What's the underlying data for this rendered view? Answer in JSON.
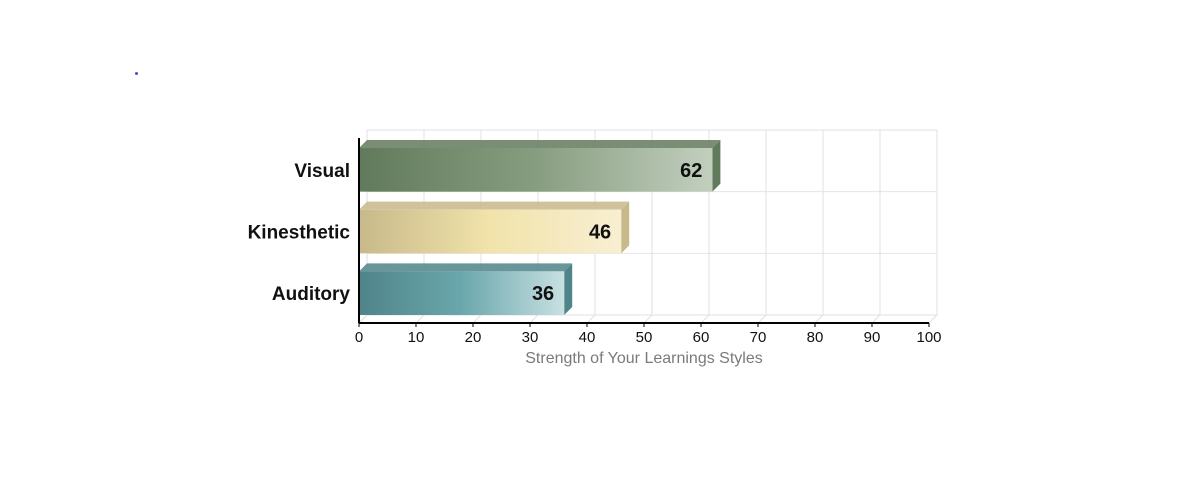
{
  "chart_data": {
    "type": "bar",
    "orientation": "horizontal",
    "categories": [
      "Visual",
      "Kinesthetic",
      "Auditory"
    ],
    "values": [
      62,
      46,
      36
    ],
    "xlabel": "Strength of Your Learnings Styles",
    "ylabel": "",
    "xlim": [
      0,
      100
    ],
    "xticks": [
      "0",
      "10",
      "20",
      "30",
      "40",
      "50",
      "60",
      "70",
      "80",
      "90",
      "100"
    ],
    "grid": true,
    "three_d": true,
    "colors": {
      "Visual": [
        "#627a5c",
        "#879d80",
        "#c2cfbe"
      ],
      "Kinesthetic": [
        "#c8b98a",
        "#f1e3aa",
        "#f8efd2"
      ],
      "Auditory": [
        "#4f8489",
        "#6aa7ac",
        "#c8e0e2"
      ]
    }
  }
}
